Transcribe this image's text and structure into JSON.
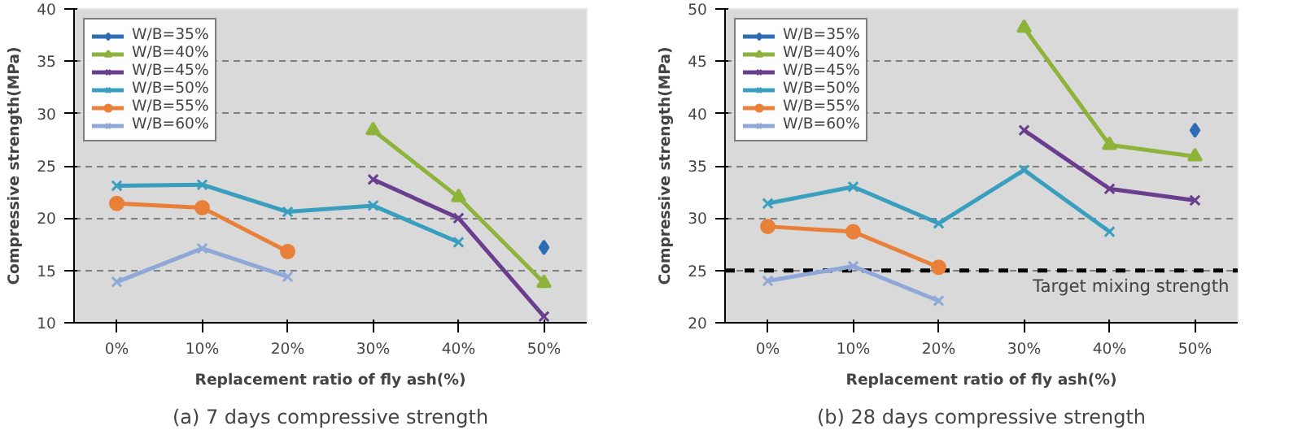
{
  "chart_data": [
    {
      "type": "line",
      "title": "(a) 7 days compressive strength",
      "xlabel": "Replacement ratio of fly ash(%)",
      "ylabel": "Compressive strength(MPa)",
      "categories": [
        "0%",
        "10%",
        "20%",
        "30%",
        "40%",
        "50%"
      ],
      "ylim": [
        10,
        40
      ],
      "yticks": [
        10,
        15,
        20,
        25,
        30,
        35,
        40
      ],
      "grid": "y",
      "legend": "top left",
      "series": [
        {
          "name": "W/B=35%",
          "color": "#2e6db4",
          "marker": "diamond",
          "values": [
            null,
            null,
            null,
            null,
            null,
            17.2
          ]
        },
        {
          "name": "W/B=40%",
          "color": "#8db33a",
          "marker": "triangle",
          "values": [
            null,
            null,
            null,
            28.4,
            22.0,
            13.8
          ]
        },
        {
          "name": "W/B=45%",
          "color": "#6a3d8f",
          "marker": "cross",
          "values": [
            null,
            null,
            null,
            23.7,
            20.0,
            10.6
          ]
        },
        {
          "name": "W/B=50%",
          "color": "#3a9fbf",
          "marker": "cross",
          "values": [
            23.1,
            23.2,
            20.6,
            21.2,
            17.7,
            null
          ]
        },
        {
          "name": "W/B=55%",
          "color": "#e8803a",
          "marker": "circle",
          "values": [
            21.4,
            21.0,
            16.8,
            null,
            null,
            null
          ]
        },
        {
          "name": "W/B=60%",
          "color": "#8fa8d8",
          "marker": "cross",
          "values": [
            13.9,
            17.1,
            14.4,
            null,
            null,
            null
          ]
        }
      ]
    },
    {
      "type": "line",
      "title": "(b) 28 days compressive strength",
      "xlabel": "Replacement ratio of fly ash(%)",
      "ylabel": "Compressive strength(MPa)",
      "categories": [
        "0%",
        "10%",
        "20%",
        "30%",
        "40%",
        "50%"
      ],
      "ylim": [
        20,
        50
      ],
      "yticks": [
        20,
        25,
        30,
        35,
        40,
        45,
        50
      ],
      "grid": "y",
      "legend": "top left",
      "series": [
        {
          "name": "W/B=35%",
          "color": "#2e6db4",
          "marker": "diamond",
          "values": [
            null,
            null,
            null,
            null,
            null,
            38.4
          ]
        },
        {
          "name": "W/B=40%",
          "color": "#8db33a",
          "marker": "triangle",
          "values": [
            null,
            null,
            null,
            48.2,
            37.0,
            35.9
          ]
        },
        {
          "name": "W/B=45%",
          "color": "#6a3d8f",
          "marker": "cross",
          "values": [
            null,
            null,
            null,
            38.4,
            32.8,
            31.7
          ]
        },
        {
          "name": "W/B=50%",
          "color": "#3a9fbf",
          "marker": "cross",
          "values": [
            31.4,
            33.0,
            29.5,
            34.6,
            28.7,
            null
          ]
        },
        {
          "name": "W/B=55%",
          "color": "#e8803a",
          "marker": "circle",
          "values": [
            29.2,
            28.7,
            25.3,
            null,
            null,
            null
          ]
        },
        {
          "name": "W/B=60%",
          "color": "#8fa8d8",
          "marker": "cross",
          "values": [
            24.0,
            25.4,
            22.1,
            null,
            null,
            null
          ]
        }
      ],
      "ref_lines": [
        {
          "axis": "y",
          "value": 25,
          "label": "Target mixing strength",
          "color": "#000000",
          "line_style": "dashed"
        }
      ]
    }
  ]
}
